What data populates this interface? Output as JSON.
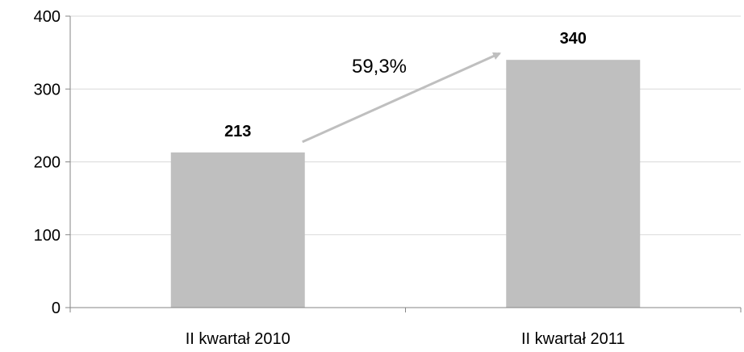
{
  "chart_data": {
    "type": "bar",
    "categories": [
      "II kwartał 2010",
      "II kwartał 2011"
    ],
    "values": [
      213,
      340
    ],
    "data_labels": [
      "213",
      "340"
    ],
    "ylim": [
      0,
      400
    ],
    "y_ticks": [
      0,
      100,
      200,
      300,
      400
    ],
    "y_tick_labels": [
      "0",
      "100",
      "200",
      "300",
      "400"
    ],
    "grid": true,
    "legend": false,
    "annotation": {
      "text": "59,3%",
      "type": "arrow",
      "from_category": "II kwartał 2010",
      "to_category": "II kwartał 2011"
    },
    "colors": {
      "bar": "#bfbfbf",
      "grid": "#d9d9d9",
      "axis": "#868686",
      "arrow": "#bfbfbf"
    }
  }
}
